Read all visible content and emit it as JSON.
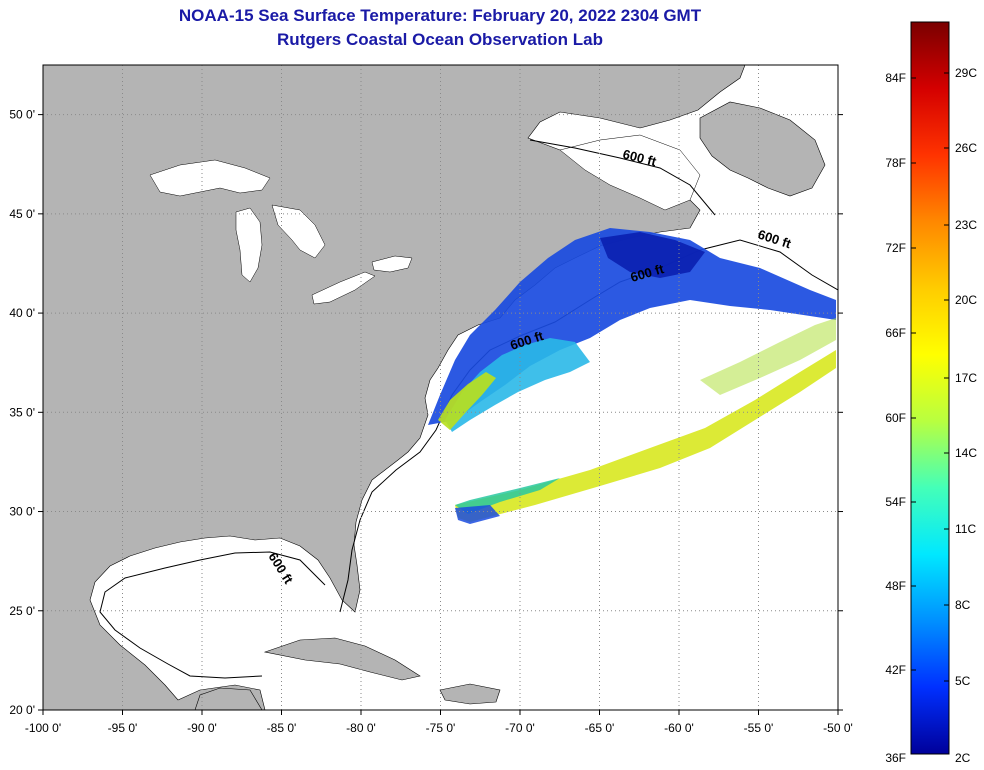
{
  "title": {
    "line1": "NOAA-15 Sea Surface Temperature:  February 20, 2022 2304 GMT",
    "line2": "Rutgers Coastal Ocean Observation Lab"
  },
  "map": {
    "lon_range": [
      -100,
      -50
    ],
    "lat_range": [
      20,
      52.5
    ],
    "lon_ticks": [
      {
        "value": -100,
        "label": "-100 0'"
      },
      {
        "value": -95,
        "label": "-95 0'"
      },
      {
        "value": -90,
        "label": "-90 0'"
      },
      {
        "value": -85,
        "label": "-85 0'"
      },
      {
        "value": -80,
        "label": "-80 0'"
      },
      {
        "value": -75,
        "label": "-75 0'"
      },
      {
        "value": -70,
        "label": "-70 0'"
      },
      {
        "value": -65,
        "label": "-65 0'"
      },
      {
        "value": -60,
        "label": "-60 0'"
      },
      {
        "value": -55,
        "label": "-55 0'"
      },
      {
        "value": -50,
        "label": "-50 0'"
      }
    ],
    "lat_ticks": [
      {
        "value": 20,
        "label": "20 0'"
      },
      {
        "value": 25,
        "label": "25 0'"
      },
      {
        "value": 30,
        "label": "30 0'"
      },
      {
        "value": 35,
        "label": "35 0'"
      },
      {
        "value": 40,
        "label": "40 0'"
      },
      {
        "value": 45,
        "label": "45 0'"
      },
      {
        "value": 50,
        "label": "50 0'"
      }
    ],
    "contour_label": "600 ft",
    "colors": {
      "land": "#b4b4b4",
      "water": "#ffffff",
      "grid": "#8a8a8a",
      "coastline": "#000000"
    }
  },
  "colorbar": {
    "fahrenheit_labels": [
      "84F",
      "78F",
      "72F",
      "66F",
      "60F",
      "54F",
      "48F",
      "42F",
      "36F"
    ],
    "celsius_labels": [
      "29C",
      "26C",
      "23C",
      "20C",
      "17C",
      "14C",
      "11C",
      "8C",
      "5C",
      "2C"
    ],
    "gradient_stops": [
      "#7a0000",
      "#d40000",
      "#ff3300",
      "#ff8800",
      "#ffcc00",
      "#ffff00",
      "#b8ff40",
      "#44ffb8",
      "#00e8ff",
      "#0090ff",
      "#0030ff",
      "#00009a"
    ]
  }
}
